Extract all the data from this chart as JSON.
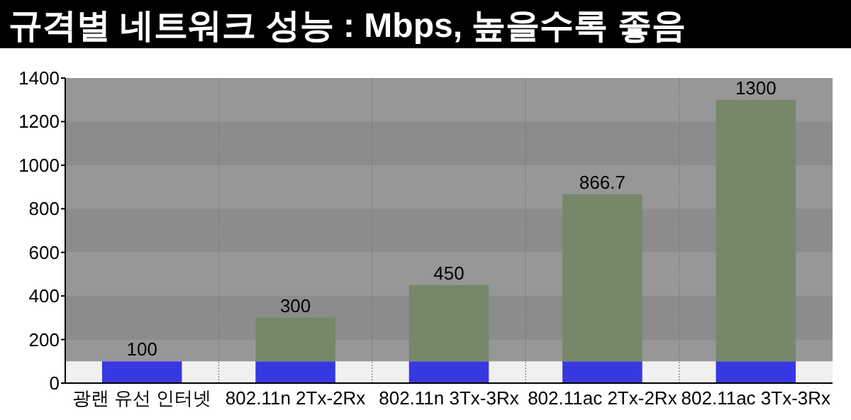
{
  "chart_data": {
    "type": "bar",
    "title": "규격별 네트워크 성능 : Mbps, 높을수록 좋음",
    "categories": [
      "광랜 유선 인터넷",
      "802.11n 2Tx-2Rx",
      "802.11n 3Tx-3Rx",
      "802.11ac 2Tx-2Rx",
      "802.11ac 3Tx-3Rx"
    ],
    "stacked": true,
    "series": [
      {
        "color": "#3838e0",
        "values": [
          100,
          100,
          100,
          100,
          100
        ]
      },
      {
        "color": "#76876a",
        "values": [
          0,
          200,
          350,
          766.7,
          1200
        ]
      }
    ],
    "totals": [
      "100",
      "300",
      "450",
      "866.7",
      "1300"
    ],
    "bands": [
      {
        "axis": "y",
        "from": 0,
        "to": 100,
        "color": "#f0f0f0"
      }
    ],
    "ylim": [
      0,
      1400
    ],
    "yticks": [
      0,
      200,
      400,
      600,
      800,
      1000,
      1200,
      1400
    ],
    "grid": true
  }
}
